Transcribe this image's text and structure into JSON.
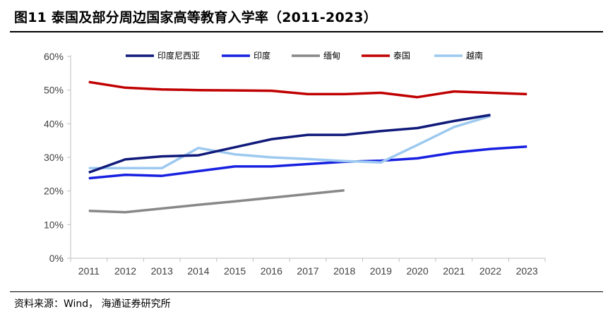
{
  "figure": {
    "title": "图11 泰国及部分周边国家高等教育入学率（2011-2023）",
    "source": "资料来源：Wind，  海通证券研究所"
  },
  "chart_data": {
    "type": "line",
    "title": "图11 泰国及部分周边国家高等教育入学率（2011-2023）",
    "xlabel": "",
    "ylabel": "",
    "x": [
      2011,
      2012,
      2013,
      2014,
      2015,
      2016,
      2017,
      2018,
      2019,
      2020,
      2021,
      2022,
      2023
    ],
    "x_ticks": [
      "2011",
      "2012",
      "2013",
      "2014",
      "2015",
      "2016",
      "2017",
      "2018",
      "2019",
      "2020",
      "2021",
      "2022",
      "2023"
    ],
    "y_ticks": [
      "0%",
      "10%",
      "20%",
      "30%",
      "40%",
      "50%",
      "60%"
    ],
    "ylim": [
      0,
      60
    ],
    "grid": false,
    "legend_position": "top",
    "series": [
      {
        "name": "印度尼西亚",
        "color": "#101a7a",
        "values": [
          25.5,
          29.4,
          30.3,
          30.6,
          33.0,
          35.4,
          36.7,
          36.7,
          37.8,
          38.7,
          40.8,
          42.6,
          null
        ]
      },
      {
        "name": "印度",
        "color": "#1720e0",
        "values": [
          23.8,
          24.8,
          24.5,
          25.9,
          27.3,
          27.3,
          28.0,
          28.7,
          29.0,
          29.7,
          31.4,
          32.5,
          33.2
        ]
      },
      {
        "name": "缅甸",
        "color": "#888888",
        "values": [
          14.1,
          13.7,
          14.8,
          15.9,
          16.9,
          18.0,
          19.1,
          20.2,
          null,
          null,
          null,
          null,
          null
        ]
      },
      {
        "name": "泰国",
        "color": "#c00000",
        "values": [
          52.4,
          50.7,
          50.2,
          50.0,
          49.9,
          49.8,
          48.8,
          48.8,
          49.2,
          47.9,
          49.6,
          49.2,
          48.8
        ]
      },
      {
        "name": "越南",
        "color": "#9dc9f0",
        "values": [
          26.8,
          26.8,
          26.8,
          32.8,
          30.9,
          30.0,
          29.5,
          28.9,
          28.5,
          33.7,
          39.0,
          42.3,
          null
        ]
      }
    ]
  }
}
